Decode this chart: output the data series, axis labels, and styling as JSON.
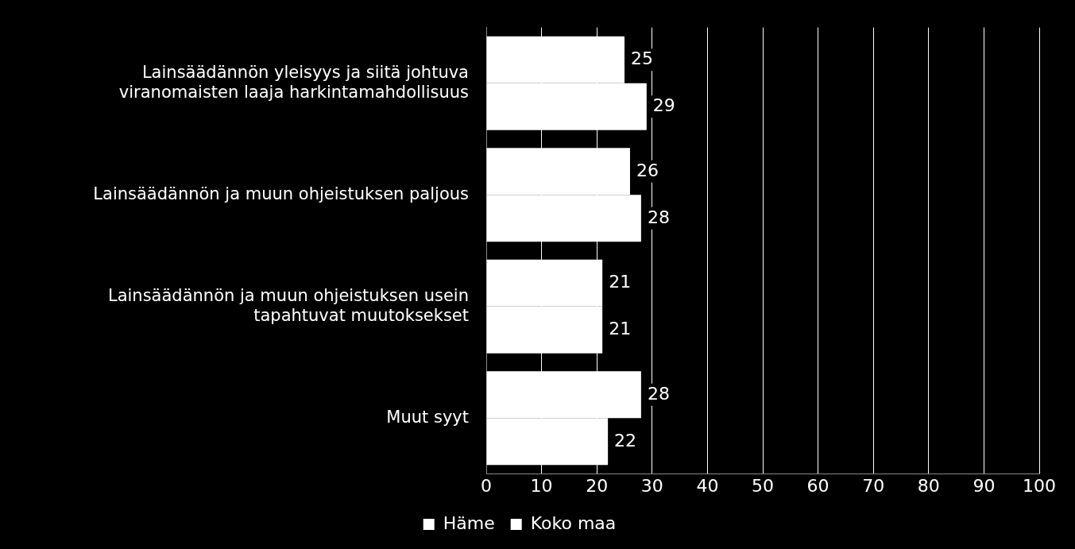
{
  "chart_data": {
    "type": "bar",
    "orientation": "horizontal",
    "categories": [
      "Lainsäädännön yleisyys ja siitä johtuva viranomaisten laaja harkintamahdollisuus",
      "Lainsäädännön ja muun ohjeistuksen paljous",
      "Lainsäädännön ja muun ohjeistuksen usein tapahtuvat muutoksekset",
      "Muut syyt"
    ],
    "series": [
      {
        "name": "Häme",
        "color": "#ffffff",
        "values": [
          25,
          26,
          21,
          28
        ]
      },
      {
        "name": "Koko maa",
        "color": "#ffffff",
        "values": [
          29,
          28,
          21,
          22
        ]
      }
    ],
    "xlim": [
      0,
      100
    ],
    "xticks": [
      0,
      10,
      20,
      30,
      40,
      50,
      60,
      70,
      80,
      90,
      100
    ],
    "grid": "x",
    "legend": "bottom",
    "data_labels": true
  }
}
